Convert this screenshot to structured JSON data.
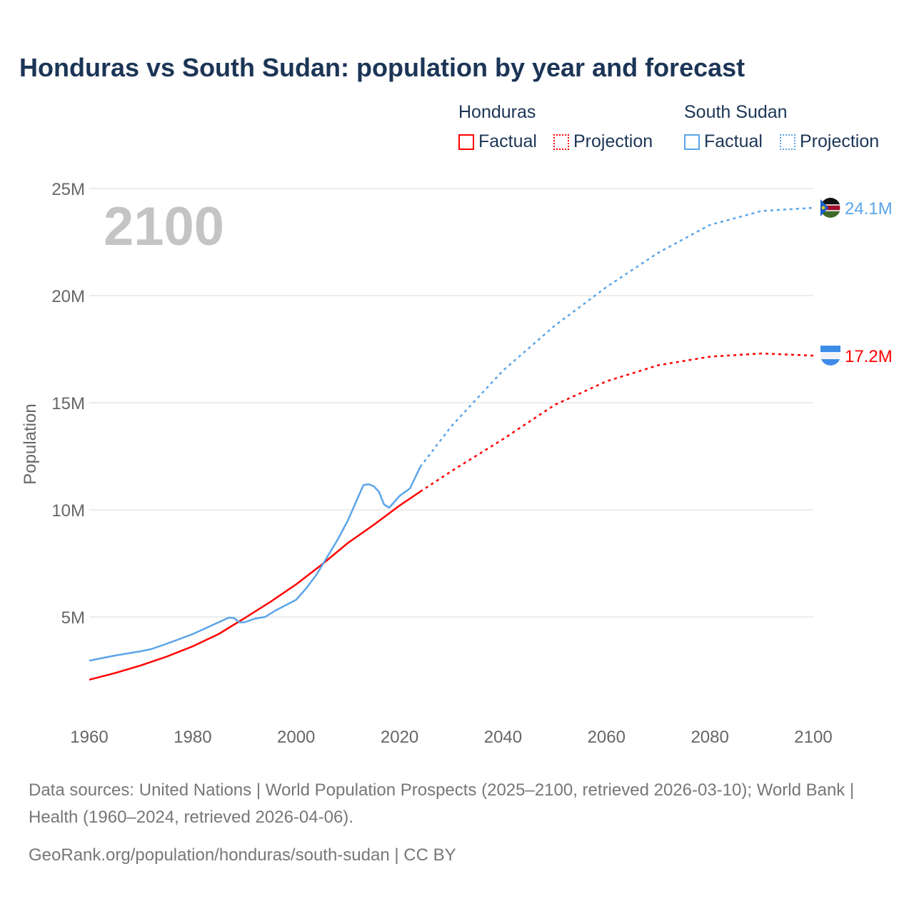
{
  "chart_data": {
    "type": "line",
    "title": "Honduras vs South Sudan: population by year and forecast",
    "xlabel": "",
    "ylabel": "Population",
    "xlim": [
      1960,
      2100
    ],
    "ylim": [
      0,
      25000000
    ],
    "x_ticks": [
      "1960",
      "1980",
      "2000",
      "2020",
      "2040",
      "2060",
      "2080",
      "2100"
    ],
    "y_ticks": [
      {
        "v": 5000000,
        "label": "5M"
      },
      {
        "v": 10000000,
        "label": "10M"
      },
      {
        "v": 15000000,
        "label": "15M"
      },
      {
        "v": 20000000,
        "label": "20M"
      },
      {
        "v": 25000000,
        "label": "25M"
      }
    ],
    "grid": true,
    "year_watermark": "2100",
    "legend": {
      "placement": "top-right",
      "groups": [
        {
          "name": "Honduras",
          "factual": "Factual",
          "projection": "Projection",
          "color": "#ff0000"
        },
        {
          "name": "South Sudan",
          "factual": "Factual",
          "projection": "Projection",
          "color": "#5ba4e8"
        }
      ]
    },
    "series": [
      {
        "name": "Honduras",
        "color": "#ff0000",
        "end_label": "17.2M",
        "factual": [
          [
            1960,
            2.07
          ],
          [
            1965,
            2.38
          ],
          [
            1970,
            2.74
          ],
          [
            1975,
            3.15
          ],
          [
            1980,
            3.63
          ],
          [
            1985,
            4.2
          ],
          [
            1990,
            4.94
          ],
          [
            1995,
            5.7
          ],
          [
            2000,
            6.52
          ],
          [
            2005,
            7.45
          ],
          [
            2010,
            8.45
          ],
          [
            2015,
            9.3
          ],
          [
            2020,
            10.2
          ],
          [
            2024,
            10.85
          ]
        ],
        "projection": [
          [
            2024,
            10.85
          ],
          [
            2030,
            11.8
          ],
          [
            2040,
            13.3
          ],
          [
            2050,
            14.9
          ],
          [
            2060,
            16.0
          ],
          [
            2070,
            16.75
          ],
          [
            2080,
            17.15
          ],
          [
            2090,
            17.3
          ],
          [
            2100,
            17.2
          ]
        ]
      },
      {
        "name": "South Sudan",
        "color": "#5ba4e8",
        "end_label": "24.1M",
        "factual": [
          [
            1960,
            2.96
          ],
          [
            1965,
            3.2
          ],
          [
            1970,
            3.4
          ],
          [
            1972,
            3.5
          ],
          [
            1975,
            3.75
          ],
          [
            1980,
            4.2
          ],
          [
            1985,
            4.75
          ],
          [
            1987,
            4.97
          ],
          [
            1988,
            4.95
          ],
          [
            1989,
            4.75
          ],
          [
            1990,
            4.75
          ],
          [
            1992,
            4.92
          ],
          [
            1994,
            5.0
          ],
          [
            1996,
            5.3
          ],
          [
            1998,
            5.55
          ],
          [
            2000,
            5.8
          ],
          [
            2002,
            6.35
          ],
          [
            2004,
            7.0
          ],
          [
            2006,
            7.8
          ],
          [
            2008,
            8.6
          ],
          [
            2010,
            9.5
          ],
          [
            2012,
            10.6
          ],
          [
            2013,
            11.15
          ],
          [
            2014,
            11.2
          ],
          [
            2015,
            11.1
          ],
          [
            2016,
            10.85
          ],
          [
            2017,
            10.25
          ],
          [
            2018,
            10.1
          ],
          [
            2020,
            10.65
          ],
          [
            2022,
            11.0
          ],
          [
            2024,
            12.0
          ]
        ],
        "projection": [
          [
            2024,
            12.0
          ],
          [
            2030,
            13.9
          ],
          [
            2040,
            16.5
          ],
          [
            2050,
            18.6
          ],
          [
            2060,
            20.4
          ],
          [
            2070,
            22.0
          ],
          [
            2080,
            23.3
          ],
          [
            2090,
            23.95
          ],
          [
            2100,
            24.1
          ]
        ]
      }
    ]
  },
  "footer": {
    "sources": "Data sources: United Nations | World Population Prospects (2025–2100, retrieved 2026-03-10); World Bank | Health (1960–2024, retrieved 2026-04-06).",
    "link": "GeoRank.org/population/honduras/south-sudan | CC BY"
  }
}
